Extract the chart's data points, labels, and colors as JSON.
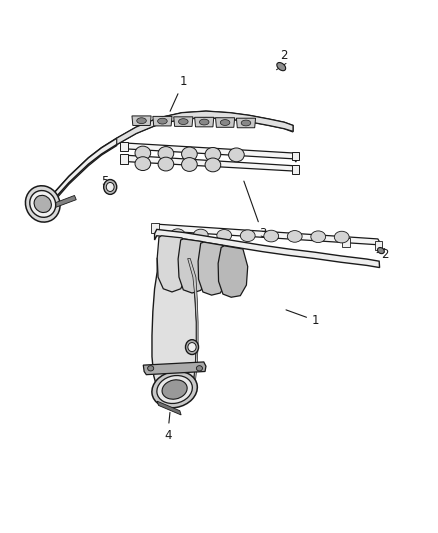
{
  "background_color": "#ffffff",
  "line_color": "#1a1a1a",
  "label_color": "#111111",
  "fig_width": 4.38,
  "fig_height": 5.33,
  "dpi": 100
}
